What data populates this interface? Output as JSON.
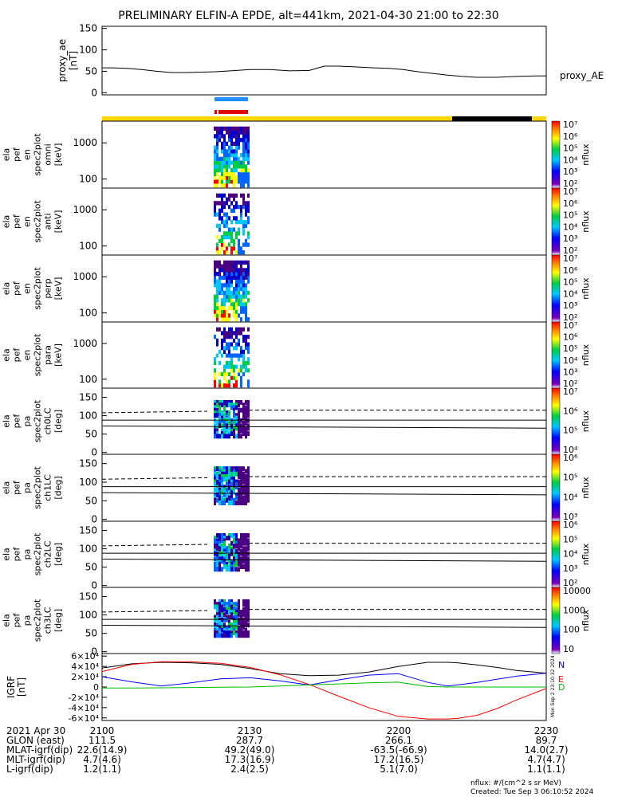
{
  "title": "PRELIMINARY ELFIN-A EPDE, alt=441km, 2021-04-30 21:00 to 22:30",
  "colors": {
    "ae_line": "#000000",
    "bar_blue": "#1e90ff",
    "bar_red": "#e00000",
    "sunlight": "#ffd700",
    "shadow": "#000000",
    "igrf_n": "#0000ff",
    "igrf_e": "#ff0000",
    "igrf_d": "#00bb00",
    "igrf_total": "#000000"
  },
  "chart_data": [
    {
      "type": "line",
      "panel": "proxy_ae",
      "ylabel": "proxy_ae [nT]",
      "legend": "proxy_AE",
      "ylim": [
        -5,
        155
      ],
      "yticks": [
        "0",
        "50",
        "100",
        "150"
      ],
      "x_min": [
        0,
        2,
        5,
        8,
        11,
        14,
        17,
        20,
        23,
        26,
        30,
        34,
        38,
        42,
        45,
        48,
        52,
        55,
        58,
        61,
        64,
        67,
        70,
        73,
        76,
        80,
        84,
        88,
        90
      ],
      "values": [
        58,
        58,
        57,
        54,
        50,
        47,
        47,
        48,
        49,
        51,
        54,
        54,
        51,
        52,
        62,
        62,
        60,
        58,
        57,
        54,
        49,
        45,
        41,
        38,
        36,
        36,
        38,
        39,
        39
      ]
    },
    {
      "type": "heatmap",
      "panel": "ela_pef_en_spec2plot_omni",
      "ylabel": "ela pef en spec2plot omni [keV]",
      "ytype": "log",
      "yticks": [
        "100",
        "1000"
      ],
      "colorbar_label": "nflux",
      "colorbar_ticks": [
        "10²",
        "10³",
        "10⁴",
        "10⁵",
        "10⁶",
        "10⁷"
      ]
    },
    {
      "type": "heatmap",
      "panel": "ela_pef_en_spec2plot_anti",
      "ylabel": "ela pef en spec2plot anti [keV]",
      "ytype": "log",
      "yticks": [
        "100",
        "1000"
      ],
      "colorbar_label": "nflux",
      "colorbar_ticks": [
        "10²",
        "10³",
        "10⁴",
        "10⁵",
        "10⁶",
        "10⁷"
      ]
    },
    {
      "type": "heatmap",
      "panel": "ela_pef_en_spec2plot_perp",
      "ylabel": "ela pef en spec2plot perp [keV]",
      "ytype": "log",
      "yticks": [
        "100",
        "1000"
      ],
      "colorbar_label": "nflux",
      "colorbar_ticks": [
        "10²",
        "10³",
        "10⁴",
        "10⁵",
        "10⁶",
        "10⁷"
      ]
    },
    {
      "type": "heatmap",
      "panel": "ela_pef_en_spec2plot_para",
      "ylabel": "ela pef en spec2plot para [keV]",
      "ytype": "log",
      "yticks": [
        "100",
        "1000"
      ],
      "colorbar_label": "nflux",
      "colorbar_ticks": [
        "10²",
        "10³",
        "10⁴",
        "10⁵",
        "10⁶",
        "10⁷"
      ]
    },
    {
      "type": "heatmap",
      "panel": "ela_pef_pa_spec2plot_ch0LC",
      "ylabel": "ela pef pa spec2plot ch0LC [deg]",
      "yticks": [
        "0",
        "50",
        "100",
        "150"
      ],
      "colorbar_label": "nflux",
      "colorbar_ticks": [
        "10⁴",
        "10⁵",
        "10⁶",
        "10⁷"
      ]
    },
    {
      "type": "heatmap",
      "panel": "ela_pef_pa_spec2plot_ch1LC",
      "ylabel": "ela pef pa spec2plot ch1LC [deg]",
      "yticks": [
        "0",
        "50",
        "100",
        "150"
      ],
      "colorbar_label": "nflux",
      "colorbar_ticks": [
        "10³",
        "10⁴",
        "10⁵",
        "10⁶"
      ]
    },
    {
      "type": "heatmap",
      "panel": "ela_pef_pa_spec2plot_ch2LC",
      "ylabel": "ela pef pa spec2plot ch2LC [deg]",
      "yticks": [
        "0",
        "50",
        "100",
        "150"
      ],
      "colorbar_label": "nflux",
      "colorbar_ticks": [
        "10²",
        "10³",
        "10⁴",
        "10⁵",
        "10⁶"
      ]
    },
    {
      "type": "heatmap",
      "panel": "ela_pef_pa_spec2plot_ch3LC",
      "ylabel": "ela pef pa spec2plot ch3LC [deg]",
      "yticks": [
        "0",
        "50",
        "100",
        "150"
      ],
      "colorbar_label": "nflux",
      "colorbar_ticks": [
        "10",
        "100",
        "1000",
        "10000"
      ]
    },
    {
      "type": "line",
      "panel": "igrf",
      "ylabel": "IGRF [nT]",
      "ylim": [
        -65000,
        65000
      ],
      "yticks": [
        "-6×10⁴",
        "-4×10⁴",
        "-2×10⁴",
        "0",
        "2×10⁴",
        "4×10⁴",
        "6×10⁴"
      ],
      "legend": [
        "N",
        "E",
        "D"
      ],
      "x_min": [
        0,
        6,
        12,
        18,
        24,
        30,
        36,
        42,
        48,
        54,
        60,
        66,
        70,
        72,
        76,
        80,
        84,
        90
      ],
      "series": [
        {
          "values": [
            37000,
            45000,
            48000,
            47000,
            44000,
            36000,
            26000,
            22000,
            23000,
            29000,
            40000,
            48000,
            48000,
            47000,
            43000,
            38000,
            32000,
            27000
          ]
        },
        {
          "values": [
            30000,
            44000,
            49000,
            49000,
            46000,
            38000,
            24000,
            5000,
            -18000,
            -40000,
            -57000,
            -62000,
            -62000,
            -61000,
            -55000,
            -42000,
            -25000,
            -3000
          ]
        },
        {
          "values": [
            20000,
            10000,
            2000,
            8000,
            16000,
            18000,
            12000,
            4000,
            14000,
            23000,
            26000,
            9000,
            2000,
            4000,
            9000,
            15000,
            21000,
            27000
          ]
        },
        {
          "values": [
            -2000,
            -2000,
            -1500,
            -1000,
            -500,
            0,
            2000,
            4000,
            6000,
            8000,
            9500,
            1000,
            0,
            0,
            0,
            0,
            0,
            0
          ]
        }
      ]
    }
  ],
  "xaxis": {
    "ticks": [
      "2100",
      "2130",
      "2200",
      "2230"
    ],
    "ephem_labels": [
      "2021 Apr 30",
      "GLON (east)",
      "MLAT-igrf(dip)",
      "MLT-igrf(dip)",
      "L-igrf(dip)"
    ],
    "ephem_columns": [
      [
        "111.5",
        "22.6(14.9)",
        "4.7(4.6)",
        "1.2(1.1)"
      ],
      [
        "287.7",
        "49.2(49.0)",
        "17.3(16.9)",
        "2.4(2.5)"
      ],
      [
        "266.1",
        "-63.5(-66.9)",
        "17.2(16.5)",
        "5.1(7.0)"
      ],
      [
        "89.7",
        "14.0(2.7)",
        "4.7(4.7)",
        "1.1(1.1)"
      ]
    ]
  },
  "footer": {
    "units": "nflux: #/(cm^2 s sr MeV)",
    "created": "Created: Tue Sep  3 06:10:52 2024",
    "side": "Mon Sep  2 23:10:32 2024"
  }
}
